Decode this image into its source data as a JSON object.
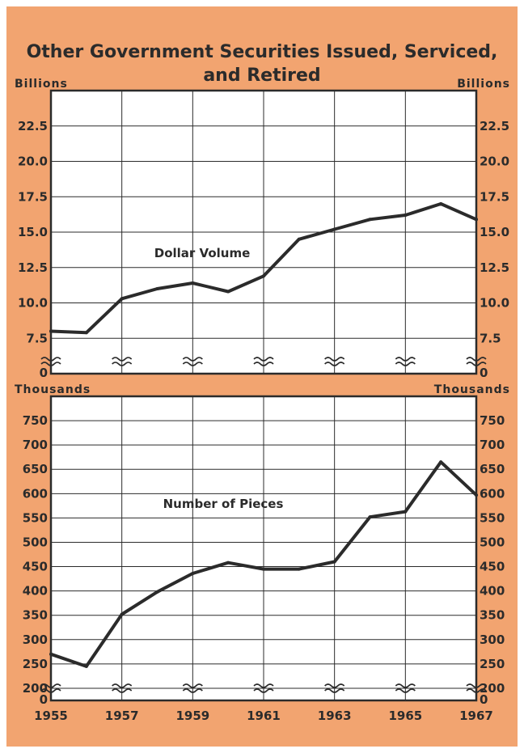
{
  "title_line1": "Other Government Securities Issued, Serviced,",
  "title_line2": "and Retired",
  "colors": {
    "background": "#f2a470",
    "plot": "#ffffff",
    "ink": "#2b2b2b"
  },
  "x_tick_labels": [
    "1955",
    "1957",
    "1959",
    "1961",
    "1963",
    "1965",
    "1967"
  ],
  "chart_data": [
    {
      "type": "line",
      "ylabel_left": "Billions",
      "ylabel_right": "Billions",
      "ylim": [
        5.0,
        25.0
      ],
      "axis_zero_label": "0",
      "axis_break": true,
      "y_ticks": [
        7.5,
        10.0,
        12.5,
        15.0,
        17.5,
        20.0,
        22.5
      ],
      "y_tick_labels": [
        "7.5",
        "10.0",
        "12.5",
        "15.0",
        "17.5",
        "20.0",
        "22.5"
      ],
      "grid": true,
      "series": [
        {
          "name": "Dollar Volume",
          "x": [
            1955,
            1956,
            1957,
            1958,
            1959,
            1960,
            1961,
            1962,
            1963,
            1964,
            1965,
            1966,
            1967
          ],
          "values": [
            8.0,
            7.9,
            10.3,
            11.0,
            11.4,
            10.8,
            11.9,
            14.5,
            15.2,
            15.9,
            16.2,
            17.0,
            15.9
          ]
        }
      ]
    },
    {
      "type": "line",
      "ylabel_left": "Thousands",
      "ylabel_right": "Thousands",
      "ylim": [
        175,
        800
      ],
      "axis_zero_label": "0",
      "axis_break": true,
      "y_ticks": [
        200,
        250,
        300,
        350,
        400,
        450,
        500,
        550,
        600,
        650,
        700,
        750
      ],
      "y_tick_labels": [
        "200",
        "250",
        "300",
        "350",
        "400",
        "450",
        "500",
        "550",
        "600",
        "650",
        "700",
        "750"
      ],
      "grid": true,
      "series": [
        {
          "name": "Number of Pieces",
          "x": [
            1955,
            1956,
            1957,
            1958,
            1959,
            1960,
            1961,
            1962,
            1963,
            1964,
            1965,
            1966,
            1967
          ],
          "values": [
            270,
            245,
            352,
            398,
            436,
            458,
            445,
            445,
            460,
            552,
            563,
            665,
            597
          ]
        }
      ]
    }
  ]
}
